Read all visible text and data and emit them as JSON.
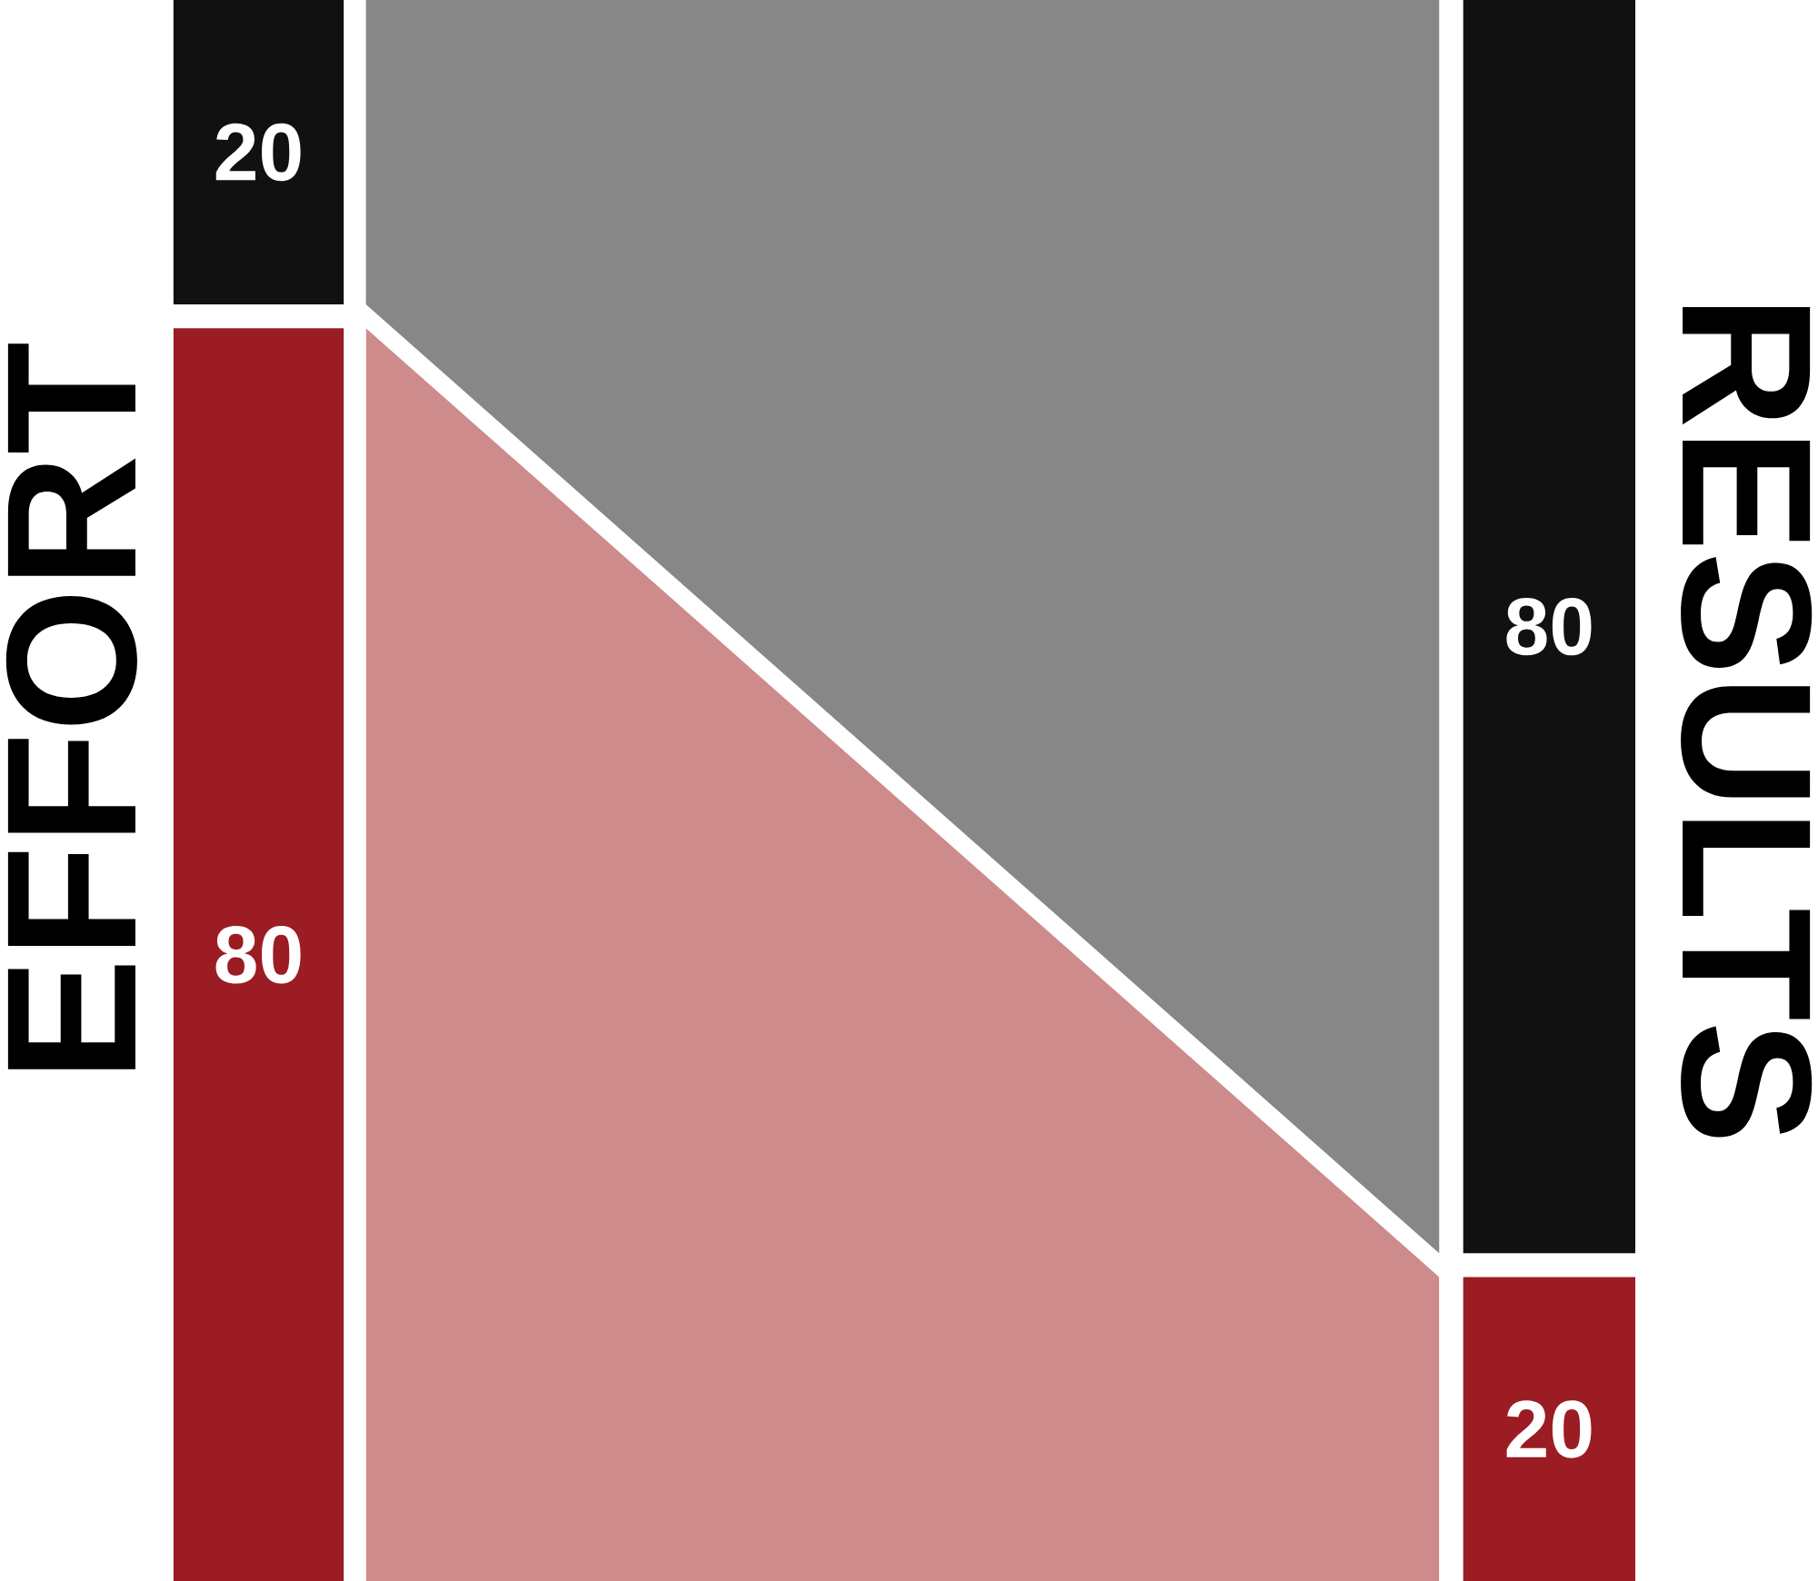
{
  "chart_data": {
    "type": "other",
    "data_labels": true,
    "categories": [
      "EFFORT",
      "RESULTS"
    ],
    "series": [
      {
        "color": "#111111",
        "values": [
          20,
          80
        ]
      },
      {
        "color": "#9b1c22",
        "values": [
          80,
          20
        ]
      }
    ],
    "colors": [
      "#878787",
      "#cd8b8b"
    ]
  }
}
